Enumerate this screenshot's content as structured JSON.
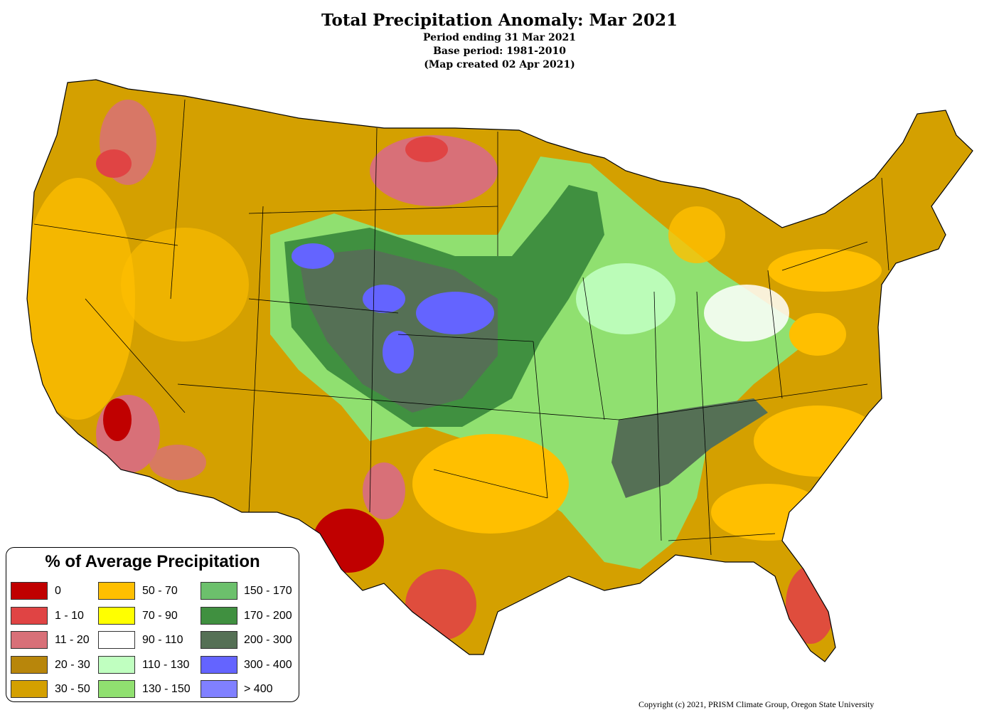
{
  "header": {
    "title": "Total Precipitation Anomaly: Mar 2021",
    "line1": "Period ending 31 Mar 2021",
    "line2": "Base period: 1981-2010",
    "line3": "(Map created 02 Apr 2021)"
  },
  "legend": {
    "title": "% of Average Precipitation",
    "items": [
      {
        "label": "0",
        "color": "#c00000"
      },
      {
        "label": "1 - 10",
        "color": "#e04444"
      },
      {
        "label": "11 - 20",
        "color": "#d87078"
      },
      {
        "label": "20 - 30",
        "color": "#b8860b"
      },
      {
        "label": "30 - 50",
        "color": "#d4a000"
      },
      {
        "label": "50 - 70",
        "color": "#ffbf00"
      },
      {
        "label": "70 - 90",
        "color": "#ffff00"
      },
      {
        "label": "90 - 110",
        "color": "#ffffff"
      },
      {
        "label": "110 - 130",
        "color": "#c0ffc0"
      },
      {
        "label": "130 - 150",
        "color": "#90e070"
      },
      {
        "label": "150 - 170",
        "color": "#6cc06c"
      },
      {
        "label": "170 - 200",
        "color": "#409040"
      },
      {
        "label": "200 - 300",
        "color": "#557055"
      },
      {
        "label": "300 - 400",
        "color": "#6464ff"
      },
      {
        "label": "> 400",
        "color": "#8080ff"
      }
    ]
  },
  "copyright": "Copyright (c) 2021, PRISM Climate Group, Oregon State University"
}
